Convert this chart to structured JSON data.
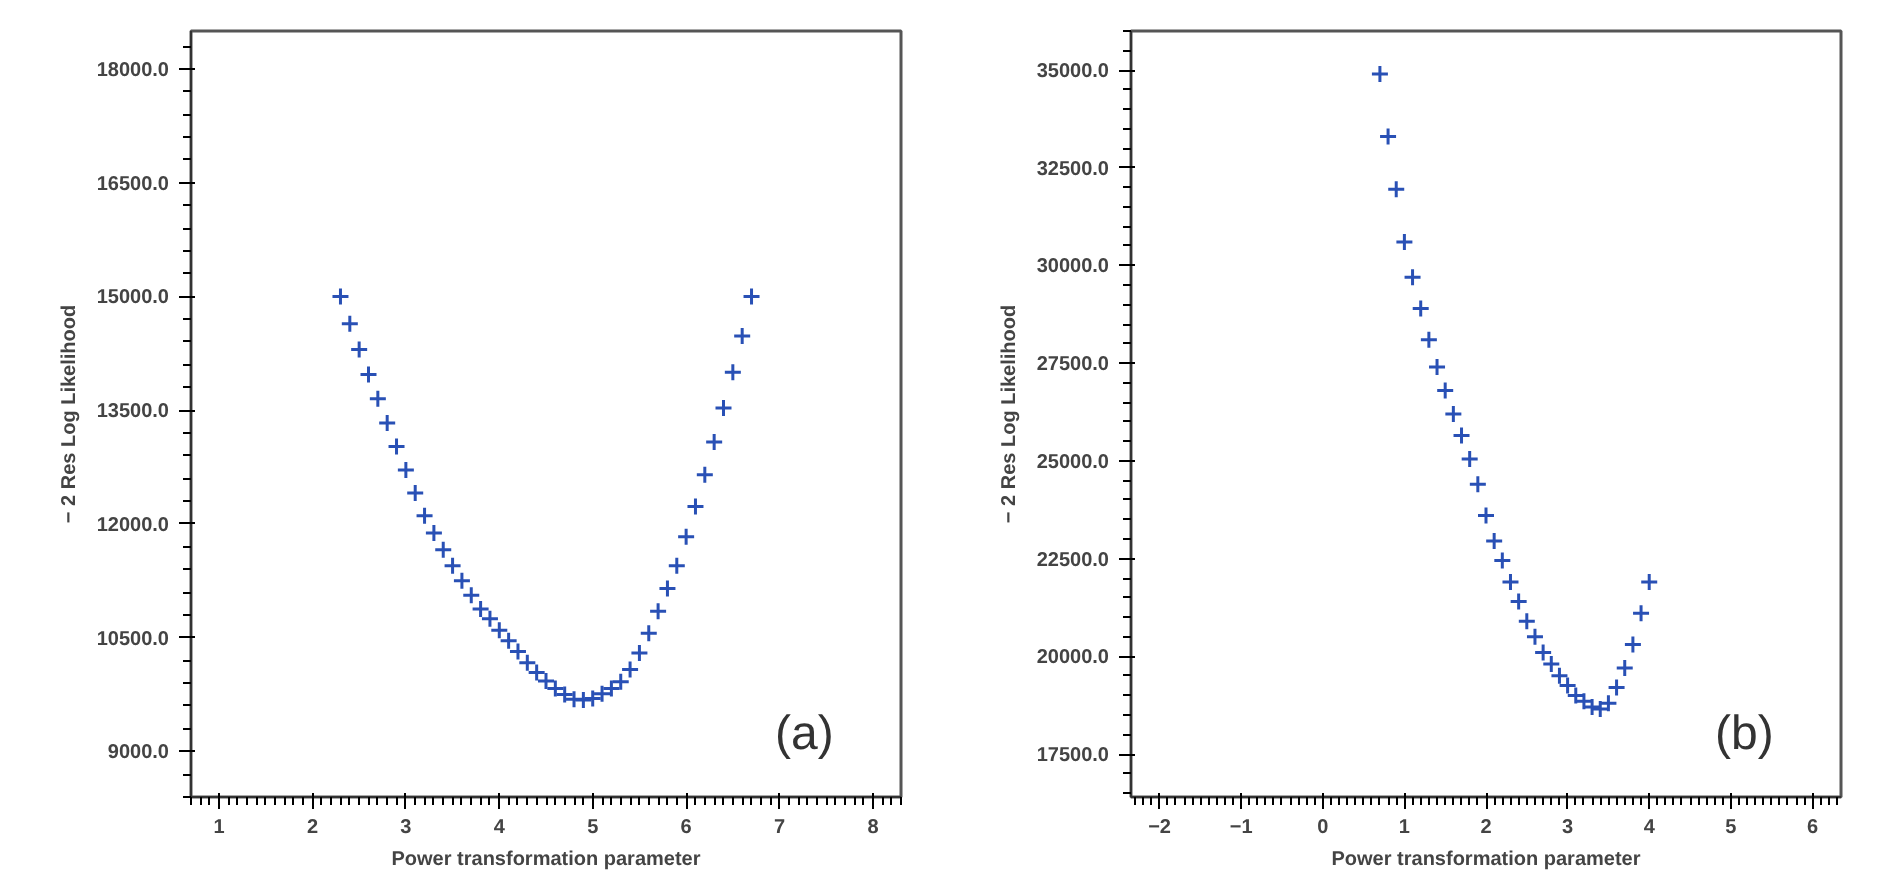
{
  "chart_data": [
    {
      "type": "scatter",
      "xlabel": "Power transformation parameter",
      "ylabel": "− 2 Res Log Likelihood",
      "marker": "cross",
      "grid": false,
      "annotations": [
        "(a)"
      ],
      "xlim": [
        0.7,
        8.3
      ],
      "ylim": [
        8400,
        18500
      ],
      "xticks": [
        1,
        2,
        3,
        4,
        5,
        6,
        7,
        8
      ],
      "yticks": [
        {
          "value": 9000,
          "label": "9000.0"
        },
        {
          "value": 10500,
          "label": "10500.0"
        },
        {
          "value": 12000,
          "label": "12000.0"
        },
        {
          "value": 13500,
          "label": "13500.0"
        },
        {
          "value": 15000,
          "label": "15000.0"
        },
        {
          "value": 16500,
          "label": "16500.0"
        },
        {
          "value": 18000,
          "label": "18000.0"
        }
      ],
      "series": [
        {
          "color": "#2950b5",
          "x": [
            2.3,
            2.4,
            2.5,
            2.6,
            2.7,
            2.8,
            2.9,
            3.0,
            3.1,
            3.2,
            3.3,
            3.4,
            3.5,
            3.6,
            3.7,
            3.8,
            3.9,
            4.0,
            4.1,
            4.2,
            4.3,
            4.4,
            4.5,
            4.6,
            4.7,
            4.8,
            4.9,
            5.0,
            5.1,
            5.2,
            5.3,
            5.4,
            5.5,
            5.6,
            5.7,
            5.8,
            5.9,
            6.0,
            6.1,
            6.2,
            6.3,
            6.4,
            6.5,
            6.6,
            6.7
          ],
          "values": [
            15000,
            14640,
            14300,
            13970,
            13650,
            13330,
            13020,
            12710,
            12410,
            12110,
            11880,
            11660,
            11450,
            11250,
            11060,
            10880,
            10750,
            10600,
            10460,
            10320,
            10170,
            10040,
            9930,
            9830,
            9750,
            9690,
            9680,
            9700,
            9760,
            9830,
            9920,
            10080,
            10300,
            10560,
            10850,
            11150,
            11450,
            11830,
            12230,
            12650,
            13080,
            13530,
            14000,
            14480,
            15000
          ]
        }
      ]
    },
    {
      "type": "scatter",
      "xlabel": "Power transformation parameter",
      "ylabel": "− 2 Res Log Likelihood",
      "marker": "cross",
      "grid": false,
      "annotations": [
        "(b)"
      ],
      "xlim": [
        -2.35,
        6.35
      ],
      "ylim": [
        16400,
        36000
      ],
      "xticks": [
        {
          "value": -2,
          "label": "−2"
        },
        {
          "value": -1,
          "label": "−1"
        },
        0,
        1,
        2,
        3,
        4,
        5,
        6
      ],
      "yticks": [
        {
          "value": 17500,
          "label": "17500.0"
        },
        {
          "value": 20000,
          "label": "20000.0"
        },
        {
          "value": 22500,
          "label": "22500.0"
        },
        {
          "value": 25000,
          "label": "25000.0"
        },
        {
          "value": 27500,
          "label": "27500.0"
        },
        {
          "value": 30000,
          "label": "30000.0"
        },
        {
          "value": 32500,
          "label": "32500.0"
        },
        {
          "value": 35000,
          "label": "35000.0"
        }
      ],
      "series": [
        {
          "color": "#2950b5",
          "x": [
            0.7,
            0.8,
            0.9,
            1.0,
            1.1,
            1.2,
            1.3,
            1.4,
            1.5,
            1.6,
            1.7,
            1.8,
            1.9,
            2.0,
            2.1,
            2.2,
            2.3,
            2.4,
            2.5,
            2.6,
            2.7,
            2.8,
            2.9,
            3.0,
            3.1,
            3.2,
            3.3,
            3.4,
            3.5,
            3.6,
            3.7,
            3.8,
            3.9,
            4.0
          ],
          "values": [
            34900,
            33300,
            31950,
            30600,
            29700,
            28900,
            28100,
            27400,
            26800,
            26200,
            25650,
            25050,
            24400,
            23600,
            22950,
            22450,
            21900,
            21400,
            20900,
            20500,
            20100,
            19800,
            19500,
            19250,
            19000,
            18850,
            18700,
            18650,
            18800,
            19200,
            19700,
            20300,
            21100,
            21900
          ]
        }
      ]
    }
  ]
}
